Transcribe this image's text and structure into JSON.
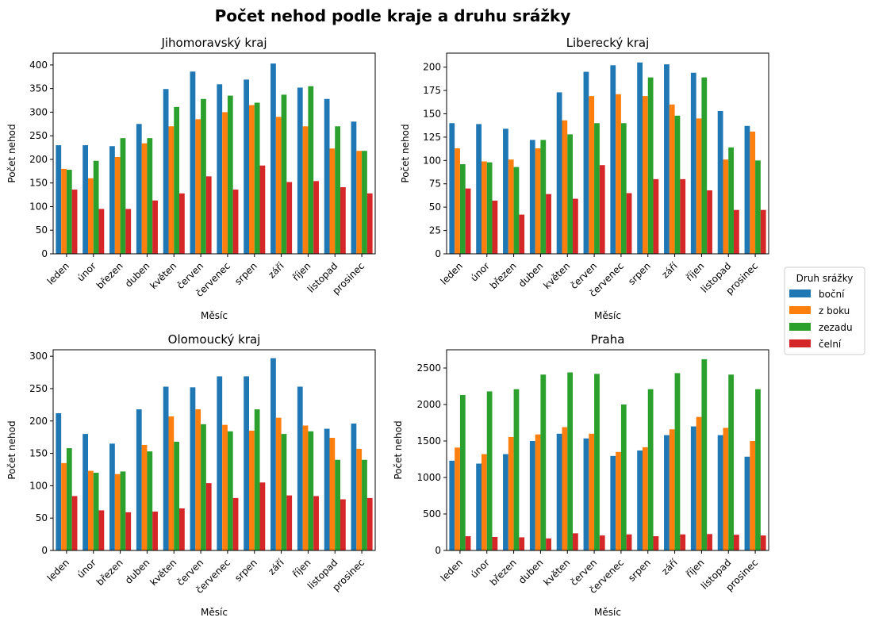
{
  "figure_title": "Počet nehod podle kraje a druhu srážky",
  "legend": {
    "title": "Druh srážky",
    "entries": [
      {
        "name": "boční",
        "color": "#1f77b4"
      },
      {
        "name": "z boku",
        "color": "#ff7f0e"
      },
      {
        "name": "zezadu",
        "color": "#2ca02c"
      },
      {
        "name": "čelní",
        "color": "#d62728"
      }
    ]
  },
  "chart_data": [
    {
      "type": "bar",
      "title": "Jihomoravský kraj",
      "xlabel": "Měsíc",
      "ylabel": "Počet nehod",
      "categories": [
        "leden",
        "únor",
        "březen",
        "duben",
        "květen",
        "červen",
        "červenec",
        "srpen",
        "září",
        "říjen",
        "listopad",
        "prosinec"
      ],
      "ylim": [
        0,
        425
      ],
      "yticks": [
        0,
        50,
        100,
        150,
        200,
        250,
        300,
        350,
        400
      ],
      "series": [
        {
          "name": "boční",
          "values": [
            230,
            230,
            228,
            275,
            349,
            386,
            359,
            369,
            403,
            352,
            328,
            280
          ]
        },
        {
          "name": "z boku",
          "values": [
            180,
            160,
            205,
            234,
            270,
            285,
            300,
            315,
            290,
            270,
            223,
            218
          ]
        },
        {
          "name": "zezadu",
          "values": [
            178,
            197,
            245,
            245,
            311,
            328,
            335,
            320,
            337,
            355,
            270,
            218
          ]
        },
        {
          "name": "čelní",
          "values": [
            136,
            95,
            95,
            113,
            128,
            164,
            136,
            187,
            152,
            154,
            141,
            128
          ]
        }
      ]
    },
    {
      "type": "bar",
      "title": "Liberecký kraj",
      "xlabel": "Měsíc",
      "ylabel": "Počet nehod",
      "categories": [
        "leden",
        "únor",
        "březen",
        "duben",
        "květen",
        "červen",
        "červenec",
        "srpen",
        "září",
        "říjen",
        "listopad",
        "prosinec"
      ],
      "ylim": [
        0,
        215
      ],
      "yticks": [
        0,
        25,
        50,
        75,
        100,
        125,
        150,
        175,
        200
      ],
      "series": [
        {
          "name": "boční",
          "values": [
            140,
            139,
            134,
            122,
            173,
            195,
            202,
            205,
            203,
            194,
            153,
            137
          ]
        },
        {
          "name": "z boku",
          "values": [
            113,
            99,
            101,
            113,
            143,
            169,
            171,
            169,
            160,
            145,
            101,
            131
          ]
        },
        {
          "name": "zezadu",
          "values": [
            96,
            98,
            93,
            122,
            128,
            140,
            140,
            189,
            148,
            189,
            114,
            100
          ]
        },
        {
          "name": "čelní",
          "values": [
            70,
            57,
            42,
            64,
            59,
            95,
            65,
            80,
            80,
            68,
            47,
            47
          ]
        }
      ]
    },
    {
      "type": "bar",
      "title": "Olomoucký kraj",
      "xlabel": "Měsíc",
      "ylabel": "Počet nehod",
      "categories": [
        "leden",
        "únor",
        "březen",
        "duben",
        "květen",
        "červen",
        "červenec",
        "srpen",
        "září",
        "říjen",
        "listopad",
        "prosinec"
      ],
      "ylim": [
        0,
        310
      ],
      "yticks": [
        0,
        50,
        100,
        150,
        200,
        250,
        300
      ],
      "series": [
        {
          "name": "boční",
          "values": [
            212,
            180,
            165,
            218,
            253,
            252,
            269,
            269,
            297,
            253,
            188,
            196
          ]
        },
        {
          "name": "z boku",
          "values": [
            135,
            123,
            118,
            163,
            207,
            218,
            194,
            185,
            205,
            193,
            174,
            157
          ]
        },
        {
          "name": "zezadu",
          "values": [
            158,
            120,
            122,
            153,
            168,
            195,
            184,
            218,
            180,
            184,
            140,
            140
          ]
        },
        {
          "name": "čelní",
          "values": [
            84,
            62,
            59,
            60,
            65,
            104,
            81,
            105,
            85,
            84,
            79,
            81
          ]
        }
      ]
    },
    {
      "type": "bar",
      "title": "Praha",
      "xlabel": "Měsíc",
      "ylabel": "Počet nehod",
      "categories": [
        "leden",
        "únor",
        "březen",
        "duben",
        "květen",
        "červen",
        "červenec",
        "srpen",
        "září",
        "říjen",
        "listopad",
        "prosinec"
      ],
      "ylim": [
        0,
        2750
      ],
      "yticks": [
        0,
        500,
        1000,
        1500,
        2000,
        2500
      ],
      "series": [
        {
          "name": "boční",
          "values": [
            1230,
            1190,
            1320,
            1500,
            1600,
            1535,
            1295,
            1370,
            1580,
            1700,
            1580,
            1285
          ]
        },
        {
          "name": "z boku",
          "values": [
            1410,
            1320,
            1555,
            1590,
            1690,
            1600,
            1350,
            1415,
            1660,
            1830,
            1680,
            1500
          ]
        },
        {
          "name": "zezadu",
          "values": [
            2130,
            2180,
            2210,
            2410,
            2440,
            2420,
            2000,
            2210,
            2430,
            2620,
            2410,
            2210
          ]
        },
        {
          "name": "čelní",
          "values": [
            195,
            185,
            180,
            165,
            235,
            205,
            220,
            195,
            220,
            225,
            215,
            205
          ]
        }
      ]
    }
  ]
}
